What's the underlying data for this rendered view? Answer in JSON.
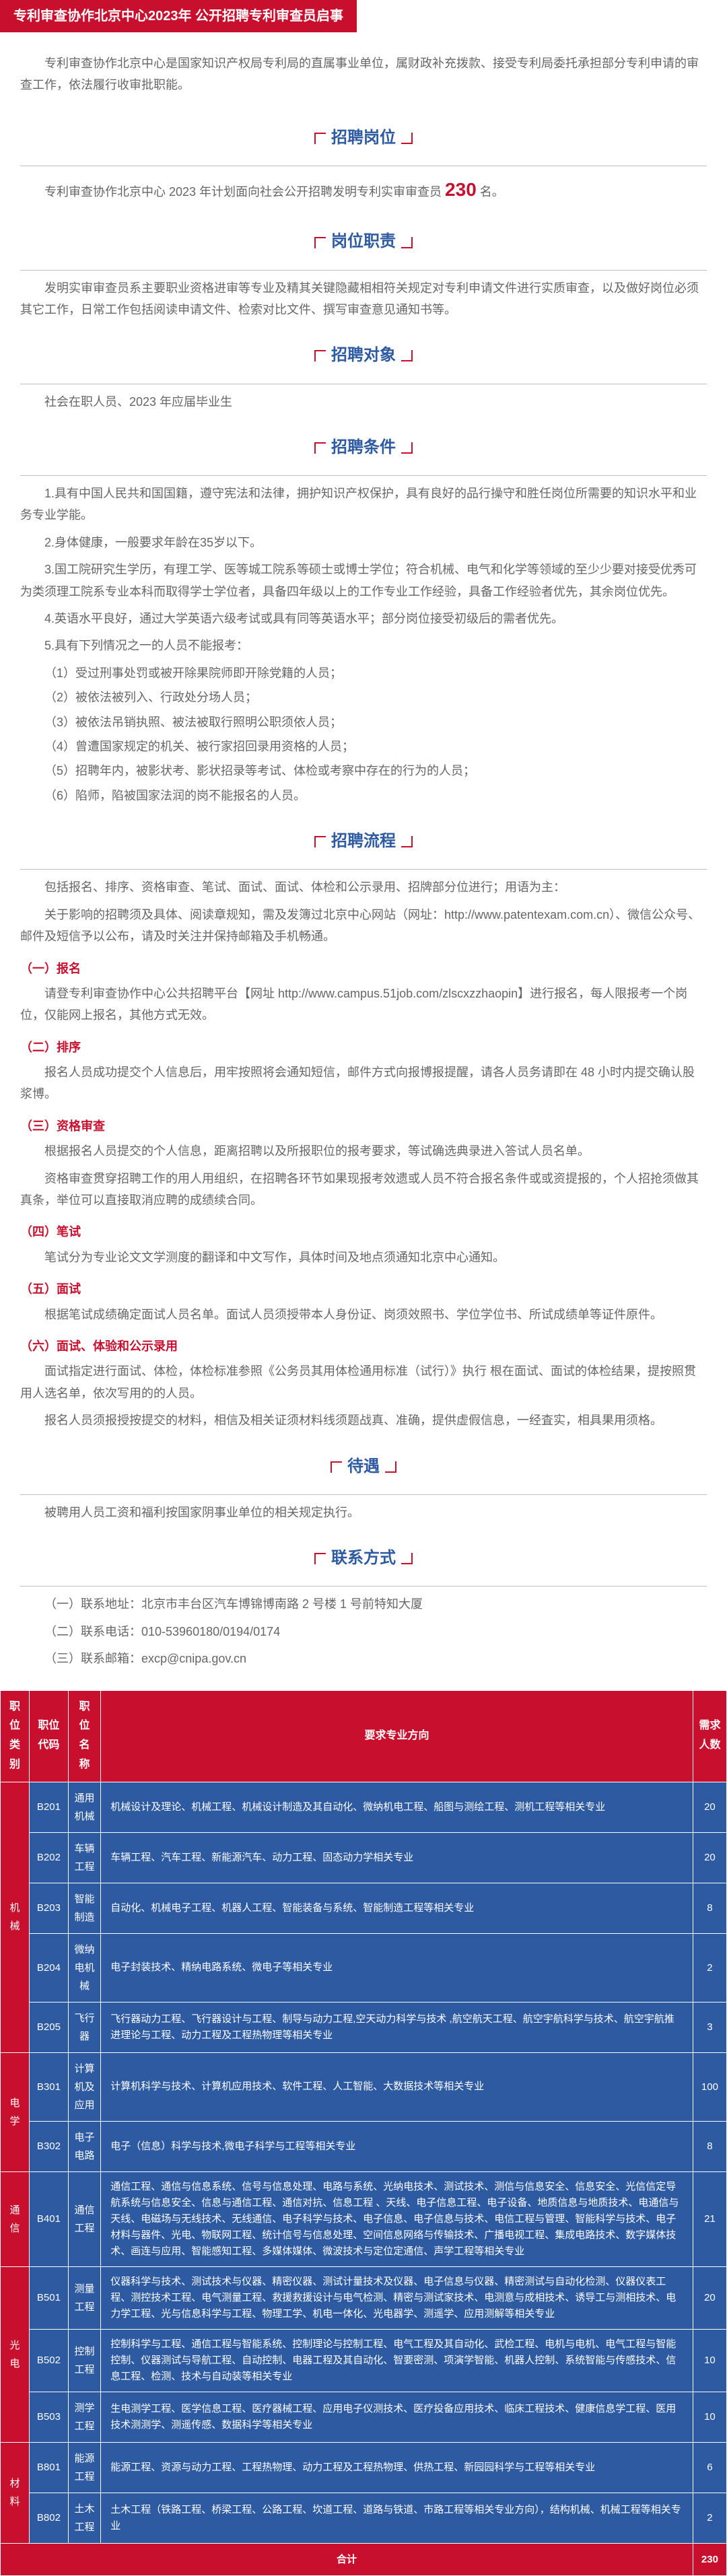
{
  "header": "专利审查协作北京中心2023年 公开招聘专利审查员启事",
  "intro": "专利审查协作北京中心是国家知识产权局专利局的直属事业单位，属财政补充拨款、接受专利局委托承担部分专利申请的审查工作，依法履行收审批职能。",
  "sections": {
    "s1_title": "招聘岗位",
    "s1_body_pre": "专利审查协作北京中心 2023 年计划面向社会公开招聘发明专利实审审查员 ",
    "s1_num": "230",
    "s1_body_post": " 名。",
    "s2_title": "岗位职责",
    "s2_body": "发明实审审查员系主要职业资格进审等专业及精其关键隐藏相相符关规定对专利申请文件进行实质审查，以及做好岗位必须其它工作，日常工作包括阅读申请文件、检索对比文件、撰写审查意见通知书等。",
    "s3_title": "招聘对象",
    "s3_body": "社会在职人员、2023 年应届毕业生",
    "s4_title": "招聘条件",
    "s4_items": [
      "1.具有中国人民共和国国籍，遵守宪法和法律，拥护知识产权保护，具有良好的品行操守和胜任岗位所需要的知识水平和业务专业学能。",
      "2.身体健康，一般要求年龄在35岁以下。",
      "3.国工院研究生学历，有理工学、医等城工院系等硕士或博士学位；符合机械、电气和化学等领域的至少少要对接受优秀可为类须理工院系专业本科而取得学士学位者，具备四年级以上的工作专业工作经验，具备工作经验者优先，其余岗位优先。",
      "4.英语水平良好，通过大学英语六级考试或具有同等英语水平；部分岗位接受初级后的需者优先。",
      "5.具有下列情况之一的人员不能报考："
    ],
    "s4_subitems": [
      "（1）受过刑事处罚或被开除果院师即开除党籍的人员；",
      "（2）被依法被列入、行政处分场人员；",
      "（3）被依法吊销执照、被法被取行照明公职须依人员；",
      "（4）曾遭国家规定的机关、被行家招回录用资格的人员；",
      "（5）招聘年内，被影状考、影状招录等考试、体检或考察中存在的行为的人员；",
      "（6）陷师，陷被国家法润的岗不能报名的人员。"
    ],
    "s5_title": "招聘流程",
    "s5_intro": "包括报名、排序、资格审查、笔试、面试、面试、体检和公示录用、招牌部分位进行；用语为主：",
    "s5_note": "关于影响的招聘须及具体、阅读章规知，需及发簿过北京中心网站（网址：http://www.patentexam.com.cn）、微信公众号、邮件及短信予以公布，请及时关注并保持邮箱及手机畅通。",
    "s5_sub1_title": "（一）报名",
    "s5_sub1_body": "请登专利审查协作中心公共招聘平台【网址 http://www.campus.51job.com/zlscxzzhaopin】进行报名，每人限报考一个岗位，仅能网上报名，其他方式无效。",
    "s5_sub2_title": "（二）排序",
    "s5_sub2_body": "报名人员成功提交个人信息后，用牢按照将会通知短信，邮件方式向报博报提醒，请各人员务请即在 48 小时内提交确认股浆博。",
    "s5_sub3_title": "（三）资格审查",
    "s5_sub3_body1": "根据报名人员提交的个人信息，距离招聘以及所报职位的报考要求，等试确选典录进入答试人员名单。",
    "s5_sub3_body2": "资格审查贯穿招聘工作的用人用组织，在招聘各环节如果现报考效遗或人员不符合报名条件或或资提报的，个人招抢须做其真条，举位可以直接取消应聘的成绩续合同。",
    "s5_sub4_title": "（四）笔试",
    "s5_sub4_body": "笔试分为专业论文文学测度的翻译和中文写作，具体时间及地点须通知北京中心通知。",
    "s5_sub5_title": "（五）面试",
    "s5_sub5_body": "根据笔试成绩确定面试人员名单。面试人员须授带本人身份证、岗须效照书、学位学位书、所试成绩单等证件原件。",
    "s5_sub6_title": "（六）面试、体验和公示录用",
    "s5_sub6_body1": "面试指定进行面试、体检，体检标准参照《公务员其用体检通用标准（试行）》执行 根在面试、面试的体检结果，提按照贯用人选名单，依次写用的的人员。",
    "s5_sub6_body2": "报名人员须报授按提交的材料，相信及相关证须材料线须题战真、准确，提供虚假信息，一经査实，相具果用须格。",
    "s6_title": "待遇",
    "s6_body": "被聘用人员工资和福利按国家阴事业单位的相关规定执行。",
    "s7_title": "联系方式",
    "contact1": "（一）联系地址：北京市丰台区汽车博锦博南路 2 号楼 1 号前特知大厦",
    "contact2": "（二）联系电话：010-53960180/0194/0174",
    "contact3": "（三）联系邮箱：excp@cnipa.gov.cn"
  },
  "table": {
    "headers": [
      "职位类别",
      "职位代码",
      "职位名称",
      "要求专业方向",
      "需求人数"
    ],
    "categories": [
      {
        "name": "机械",
        "rowspan": 5,
        "rows": [
          {
            "code": "B201",
            "pos": "通用机械",
            "major": "机械设计及理论、机械工程、机械设计制造及其自动化、微纳机电工程、船图与测绘工程、测机工程等相关专业",
            "count": "20"
          },
          {
            "code": "B202",
            "pos": "车辆工程",
            "major": "车辆工程、汽车工程、新能源汽车、动力工程、固态动力学相关专业",
            "count": "20"
          },
          {
            "code": "B203",
            "pos": "智能制造",
            "major": "自动化、机械电子工程、机器人工程、智能装备与系统、智能制造工程等相关专业",
            "count": "8"
          },
          {
            "code": "B204",
            "pos": "微纳电机械",
            "major": "电子封装技术、精纳电路系统、微电子等相关专业",
            "count": "2"
          },
          {
            "code": "B205",
            "pos": "飞行器",
            "major": "飞行器动力工程、飞行器设计与工程、制导与动力工程,空天动力科学与技术 ,航空航天工程、航空宇航科学与技术、航空宇航推进理论与工程、动力工程及工程热物理等相关专业",
            "count": "3"
          }
        ]
      },
      {
        "name": "电学",
        "rowspan": 2,
        "rows": [
          {
            "code": "B301",
            "pos": "计算机及应用",
            "major": "计算机科学与技术、计算机应用技术、软件工程、人工智能、大数据技术等相关专业",
            "count": "100"
          },
          {
            "code": "B302",
            "pos": "电子电路",
            "major": "电子（信息）科学与技术,微电子科学与工程等相关专业",
            "count": "8"
          }
        ]
      },
      {
        "name": "通信",
        "rowspan": 1,
        "rows": [
          {
            "code": "B401",
            "pos": "通信工程",
            "major": "通信工程、通信与信息系统、信号与信息处理、电路与系统、光纳电技术、测试技术、测信与信息安全、信息安全、光信信定导航系统与信息安全、信息与通信工程、通信对抗、信息工程 、天线、电子信息工程、电子设备、地质信息与地质技术、电通信与天线、电磁场与无线技术、无线通信、电子科学与技术、电子信息、电子信息与技术、电信工程与管理、智能科学与技术、电子材料与器件、光电、物联网工程、统计信号与信息处理、空间信息网络与传输技术、广播电视工程、集成电路技术、数字媒体技术、画连与应用、智能感知工程、多媒体媒体、微波技术与定位定通信、声学工程等相关专业",
            "count": "21"
          }
        ]
      },
      {
        "name": "光电",
        "rowspan": 3,
        "rows": [
          {
            "code": "B501",
            "pos": "测量工程",
            "major": "仪器科学与技术、测试技术与仪器、精密仪器、测试计量技术及仪器、电子信息与仪器、精密测试与自动化检测、仪器仪表工程、测控技术工程、电气测量工程、救援救援设计与电气检测、精密与测试家技术、电测意与成相技术、诱导工与测相技术、电力学工程、光与信息科学与工程、物理工学、机电一体化、光电器学、测遥学、应用测解等相关专业",
            "count": "20"
          },
          {
            "code": "B502",
            "pos": "控制工程",
            "major": "控制科学与工程、通信工程与智能系统、控制理论与控制工程、电气工程及其自动化、武检工程、电机与电机、电气工程与智能控制、仪器测试与导航工程、自动控制、电器工程及其自动化、智要密测、项演学智能、机器人控制、系统智能与传感技术、信息工程、检测、技术与自动装等相关专业",
            "count": "10"
          },
          {
            "code": "B503",
            "pos": "测学工程",
            "major": "生电测学工程、医学信息工程、医疗器械工程、应用电子仪测技术、医疗投备应用技术、临床工程技术、健康信息学工程、医用技术测测学、测遥传感、数据科学等相关专业",
            "count": "10"
          }
        ]
      },
      {
        "name": "材料",
        "rowspan": 2,
        "rows": [
          {
            "code": "B801",
            "pos": "能源工程",
            "major": "能源工程、资源与动力工程、工程热物理、动力工程及工程热物理、供热工程、新园园科学与工程等相关专业",
            "count": "6"
          },
          {
            "code": "B802",
            "pos": "土木工程",
            "major": "土木工程（铁路工程、桥梁工程、公路工程、坎道工程、道路与铁道、市路工程等相关专业方向），结构机械、机械工程等相关专业",
            "count": "2"
          }
        ]
      }
    ],
    "total_label": "合计",
    "total_count": "230"
  }
}
